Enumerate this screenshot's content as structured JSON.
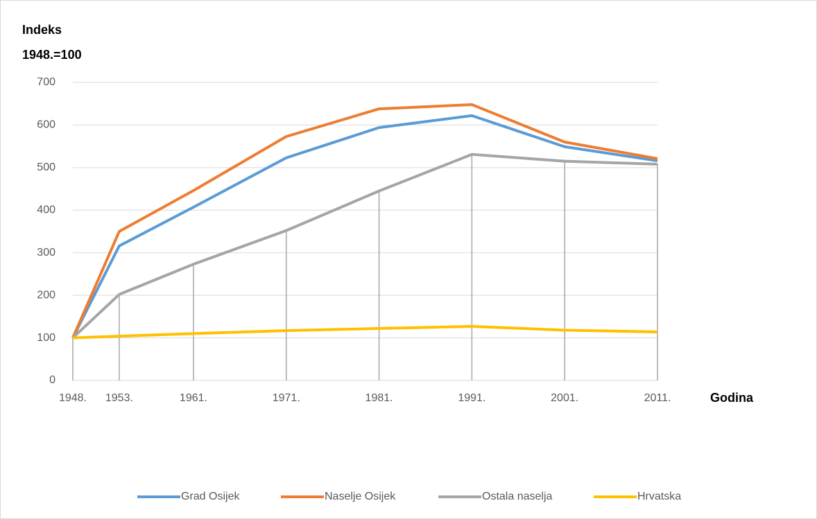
{
  "chart_data": {
    "type": "line",
    "ylabel": [
      "Indeks",
      "1948.=100"
    ],
    "xlabel": "Godina",
    "x": [
      1948,
      1953,
      1961,
      1971,
      1981,
      1991,
      2001,
      2011
    ],
    "xlim": [
      1948,
      2011
    ],
    "xticks": [
      {
        "value": 1948,
        "label": "1948."
      },
      {
        "value": 1953,
        "label": "1953."
      },
      {
        "value": 1961,
        "label": "1961."
      },
      {
        "value": 1971,
        "label": "1971."
      },
      {
        "value": 1981,
        "label": "1981."
      },
      {
        "value": 1991,
        "label": "1991."
      },
      {
        "value": 2001,
        "label": "2001."
      },
      {
        "value": 2011,
        "label": "2011."
      }
    ],
    "ylim": [
      0,
      700
    ],
    "yticks": [
      0,
      100,
      200,
      300,
      400,
      500,
      600,
      700
    ],
    "grid": true,
    "legend": "bottom",
    "series": [
      {
        "name": "Grad Osijek",
        "color": "#5b9bd5",
        "values": [
          100,
          316,
          407,
          523,
          594,
          622,
          549,
          516
        ]
      },
      {
        "name": "Naselje Osijek",
        "color": "#ed7d31",
        "values": [
          100,
          350,
          446,
          573,
          638,
          648,
          560,
          521
        ]
      },
      {
        "name": "Ostala naselja",
        "color": "#a5a5a5",
        "values": [
          100,
          202,
          273,
          352,
          445,
          531,
          515,
          508
        ]
      },
      {
        "name": "Hrvatska",
        "color": "#ffc000",
        "values": [
          100,
          104,
          110,
          117,
          122,
          127,
          118,
          114
        ]
      }
    ]
  }
}
